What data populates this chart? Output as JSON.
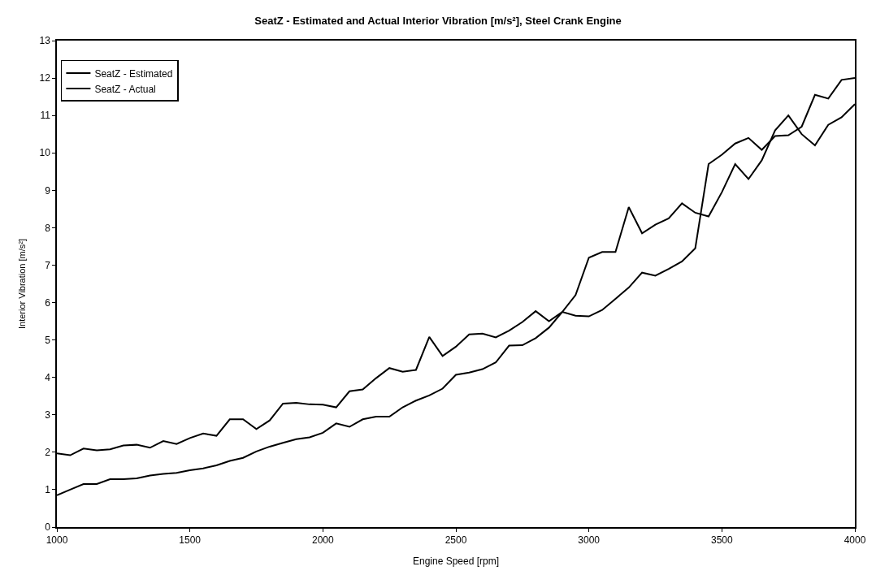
{
  "chart_data": {
    "type": "line",
    "title": "SeatZ - Estimated and Actual Interior Vibration [m/s²], Steel Crank Engine",
    "xlabel": "Engine Speed [rpm]",
    "ylabel": "Interior Vibration [m/s²]",
    "x": [
      1000,
      1050,
      1100,
      1150,
      1200,
      1250,
      1300,
      1350,
      1400,
      1450,
      1500,
      1550,
      1600,
      1650,
      1700,
      1750,
      1800,
      1850,
      1900,
      1950,
      2000,
      2050,
      2100,
      2150,
      2200,
      2250,
      2300,
      2350,
      2400,
      2450,
      2500,
      2550,
      2600,
      2650,
      2700,
      2750,
      2800,
      2850,
      2900,
      2950,
      3000,
      3050,
      3100,
      3150,
      3200,
      3250,
      3300,
      3350,
      3400,
      3450,
      3500,
      3550,
      3600,
      3650,
      3700,
      3750,
      3800,
      3850,
      3900,
      3950,
      4000
    ],
    "series": [
      {
        "name": "SeatZ - Estimated",
        "color": "#000000",
        "values": [
          0.85,
          1.0,
          1.15,
          1.15,
          1.28,
          1.28,
          1.3,
          1.38,
          1.42,
          1.45,
          1.52,
          1.57,
          1.65,
          1.77,
          1.85,
          2.02,
          2.15,
          2.25,
          2.35,
          2.4,
          2.52,
          2.77,
          2.68,
          2.88,
          2.95,
          2.95,
          3.2,
          3.38,
          3.52,
          3.7,
          4.07,
          4.13,
          4.22,
          4.4,
          4.85,
          4.86,
          5.05,
          5.33,
          5.75,
          6.2,
          7.2,
          7.35,
          7.35,
          8.55,
          7.85,
          8.08,
          8.25,
          8.65,
          8.4,
          8.3,
          8.95,
          9.7,
          9.3,
          9.8,
          10.6,
          11.0,
          10.5,
          10.2,
          10.75,
          10.95,
          11.3
        ]
      },
      {
        "name": "SeatZ - Actual",
        "color": "#000000",
        "values": [
          1.97,
          1.92,
          2.1,
          2.05,
          2.08,
          2.18,
          2.2,
          2.12,
          2.3,
          2.22,
          2.38,
          2.5,
          2.44,
          2.88,
          2.88,
          2.62,
          2.85,
          3.3,
          3.32,
          3.28,
          3.27,
          3.2,
          3.63,
          3.68,
          3.98,
          4.25,
          4.15,
          4.2,
          5.08,
          4.57,
          4.82,
          5.15,
          5.17,
          5.07,
          5.25,
          5.48,
          5.77,
          5.5,
          5.75,
          5.65,
          5.63,
          5.8,
          6.1,
          6.4,
          6.8,
          6.72,
          6.9,
          7.1,
          7.45,
          9.7,
          9.95,
          10.25,
          10.4,
          10.08,
          10.45,
          10.47,
          10.7,
          11.55,
          11.45,
          11.95,
          12.0
        ]
      }
    ],
    "xlim": [
      1000,
      4000
    ],
    "xticks": [
      1000,
      1500,
      2000,
      2500,
      3000,
      3500,
      4000
    ],
    "ylim": [
      0,
      13
    ],
    "yticks": [
      0,
      1,
      2,
      3,
      4,
      5,
      6,
      7,
      8,
      9,
      10,
      11,
      12,
      13
    ],
    "legend": "top left",
    "marker": "none",
    "line_style": "solid"
  }
}
